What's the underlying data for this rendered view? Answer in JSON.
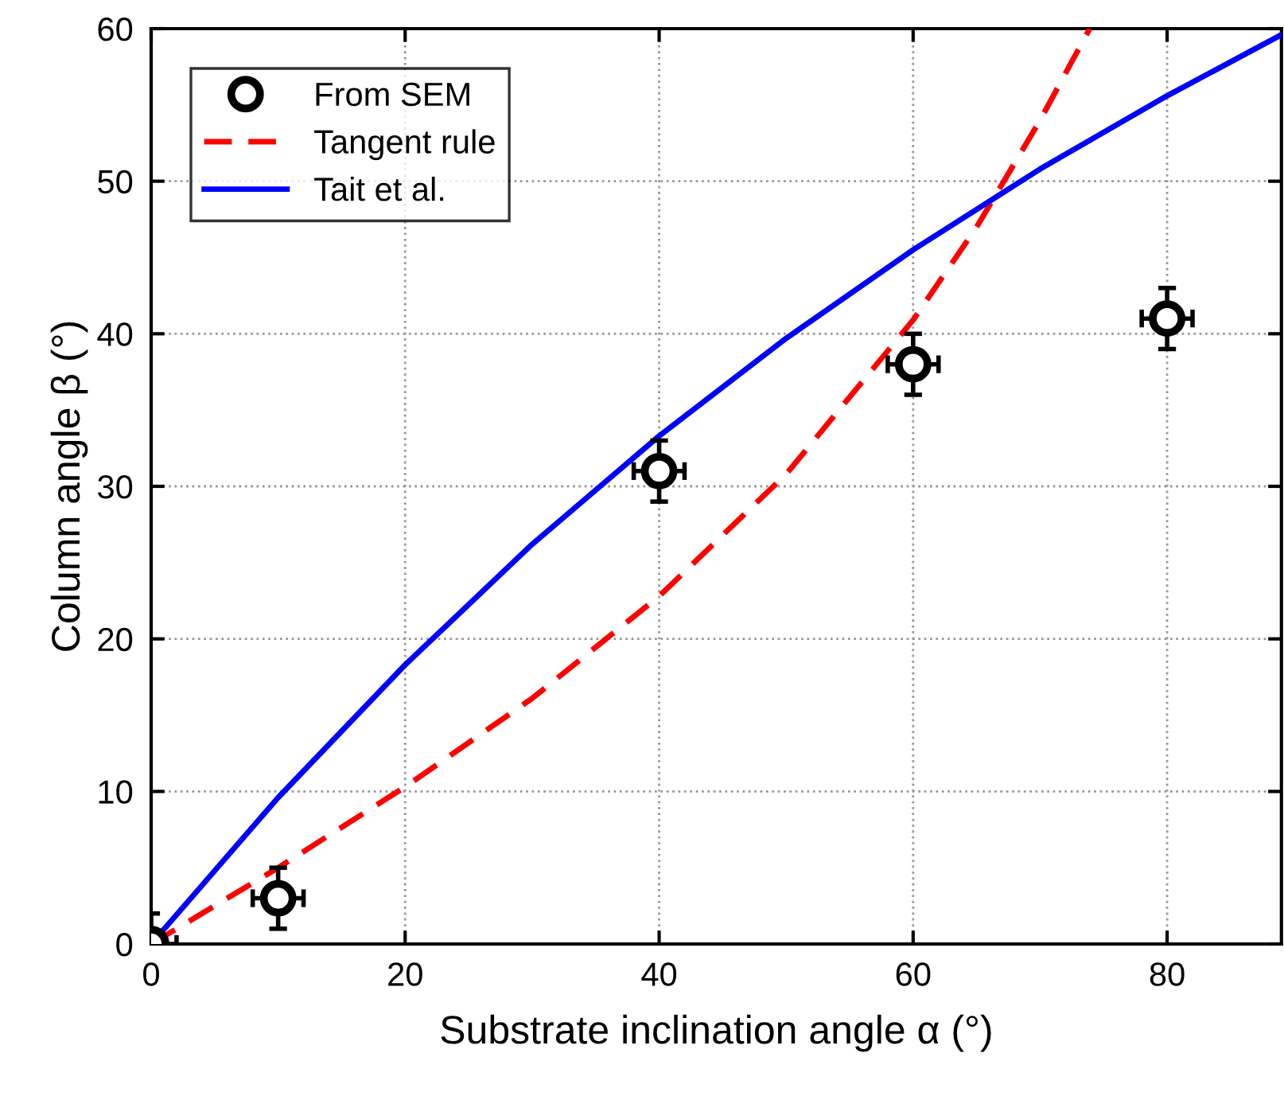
{
  "chart_data": {
    "type": "line",
    "xlabel": "Substrate inclination angle α (°)",
    "ylabel": "Column angle β (°)",
    "xlim": [
      0,
      89
    ],
    "ylim": [
      0,
      60
    ],
    "xticks": [
      0,
      20,
      40,
      60,
      80
    ],
    "yticks": [
      0,
      10,
      20,
      30,
      40,
      50,
      60
    ],
    "grid": true,
    "legend": "top left",
    "series": [
      {
        "name": "From SEM",
        "type": "scatter",
        "color": "#000000",
        "marker": "circle",
        "x": [
          0,
          10,
          40,
          60,
          80
        ],
        "values": [
          0,
          3,
          31,
          38,
          41
        ],
        "errors": [
          2,
          2,
          2,
          2,
          2
        ],
        "xerrors": [
          2,
          2,
          2,
          2,
          2
        ]
      },
      {
        "name": "Tangent rule",
        "color": "#ff0000",
        "line_style": "dashed",
        "x": [
          0,
          10,
          20,
          30,
          40,
          50,
          60,
          65,
          70,
          73.9
        ],
        "values": [
          0,
          5,
          10.3,
          16.1,
          22.8,
          30.8,
          40.9,
          47,
          54,
          60
        ]
      },
      {
        "name": "Tait et al.",
        "color": "#0000ff",
        "line_style": "solid",
        "x": [
          0,
          10,
          20,
          30,
          40,
          50,
          60,
          70,
          80,
          89
        ],
        "values": [
          0,
          9.6,
          18.3,
          26.2,
          33.3,
          39.7,
          45.5,
          50.8,
          55.6,
          59.6
        ]
      }
    ]
  }
}
